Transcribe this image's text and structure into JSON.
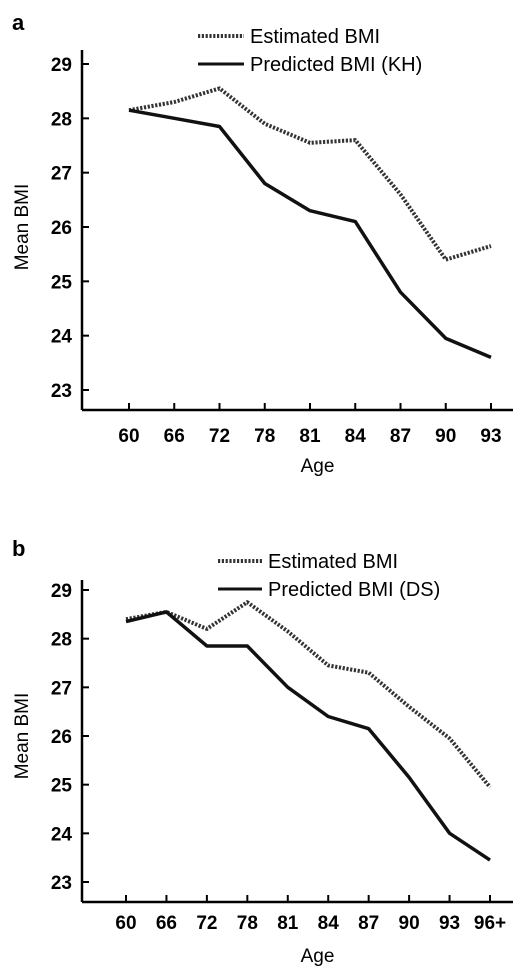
{
  "chart_data": [
    {
      "panel": "a",
      "type": "line",
      "xlabel": "Age",
      "ylabel": "Mean BMI",
      "categories": [
        "60",
        "66",
        "72",
        "78",
        "81",
        "84",
        "87",
        "90",
        "93"
      ],
      "ylim": [
        23,
        29
      ],
      "yticks": [
        "23",
        "24",
        "25",
        "26",
        "27",
        "28",
        "29"
      ],
      "legend_position": "top-right",
      "series": [
        {
          "name": "Estimated BMI",
          "style": "dotted",
          "values": [
            28.15,
            28.3,
            28.55,
            27.9,
            27.55,
            27.6,
            26.6,
            25.4,
            25.65
          ]
        },
        {
          "name": "Predicted BMI (KH)",
          "style": "solid",
          "values": [
            28.15,
            28.0,
            27.85,
            26.8,
            26.3,
            26.1,
            24.8,
            23.95,
            23.6
          ]
        }
      ]
    },
    {
      "panel": "b",
      "type": "line",
      "xlabel": "Age",
      "ylabel": "Mean BMI",
      "categories": [
        "60",
        "66",
        "72",
        "78",
        "81",
        "84",
        "87",
        "90",
        "93",
        "96+"
      ],
      "ylim": [
        23,
        29
      ],
      "yticks": [
        "23",
        "24",
        "25",
        "26",
        "27",
        "28",
        "29"
      ],
      "legend_position": "top-right",
      "series": [
        {
          "name": "Estimated BMI",
          "style": "dotted",
          "values": [
            28.4,
            28.55,
            28.2,
            28.75,
            28.15,
            27.45,
            27.3,
            26.6,
            25.95,
            24.95
          ]
        },
        {
          "name": "Predicted BMI (DS)",
          "style": "solid",
          "values": [
            28.35,
            28.55,
            27.85,
            27.85,
            27.0,
            26.4,
            26.15,
            25.15,
            24.0,
            23.45
          ]
        }
      ]
    }
  ],
  "colors": {
    "line": "#111111",
    "axis": "#000000"
  }
}
